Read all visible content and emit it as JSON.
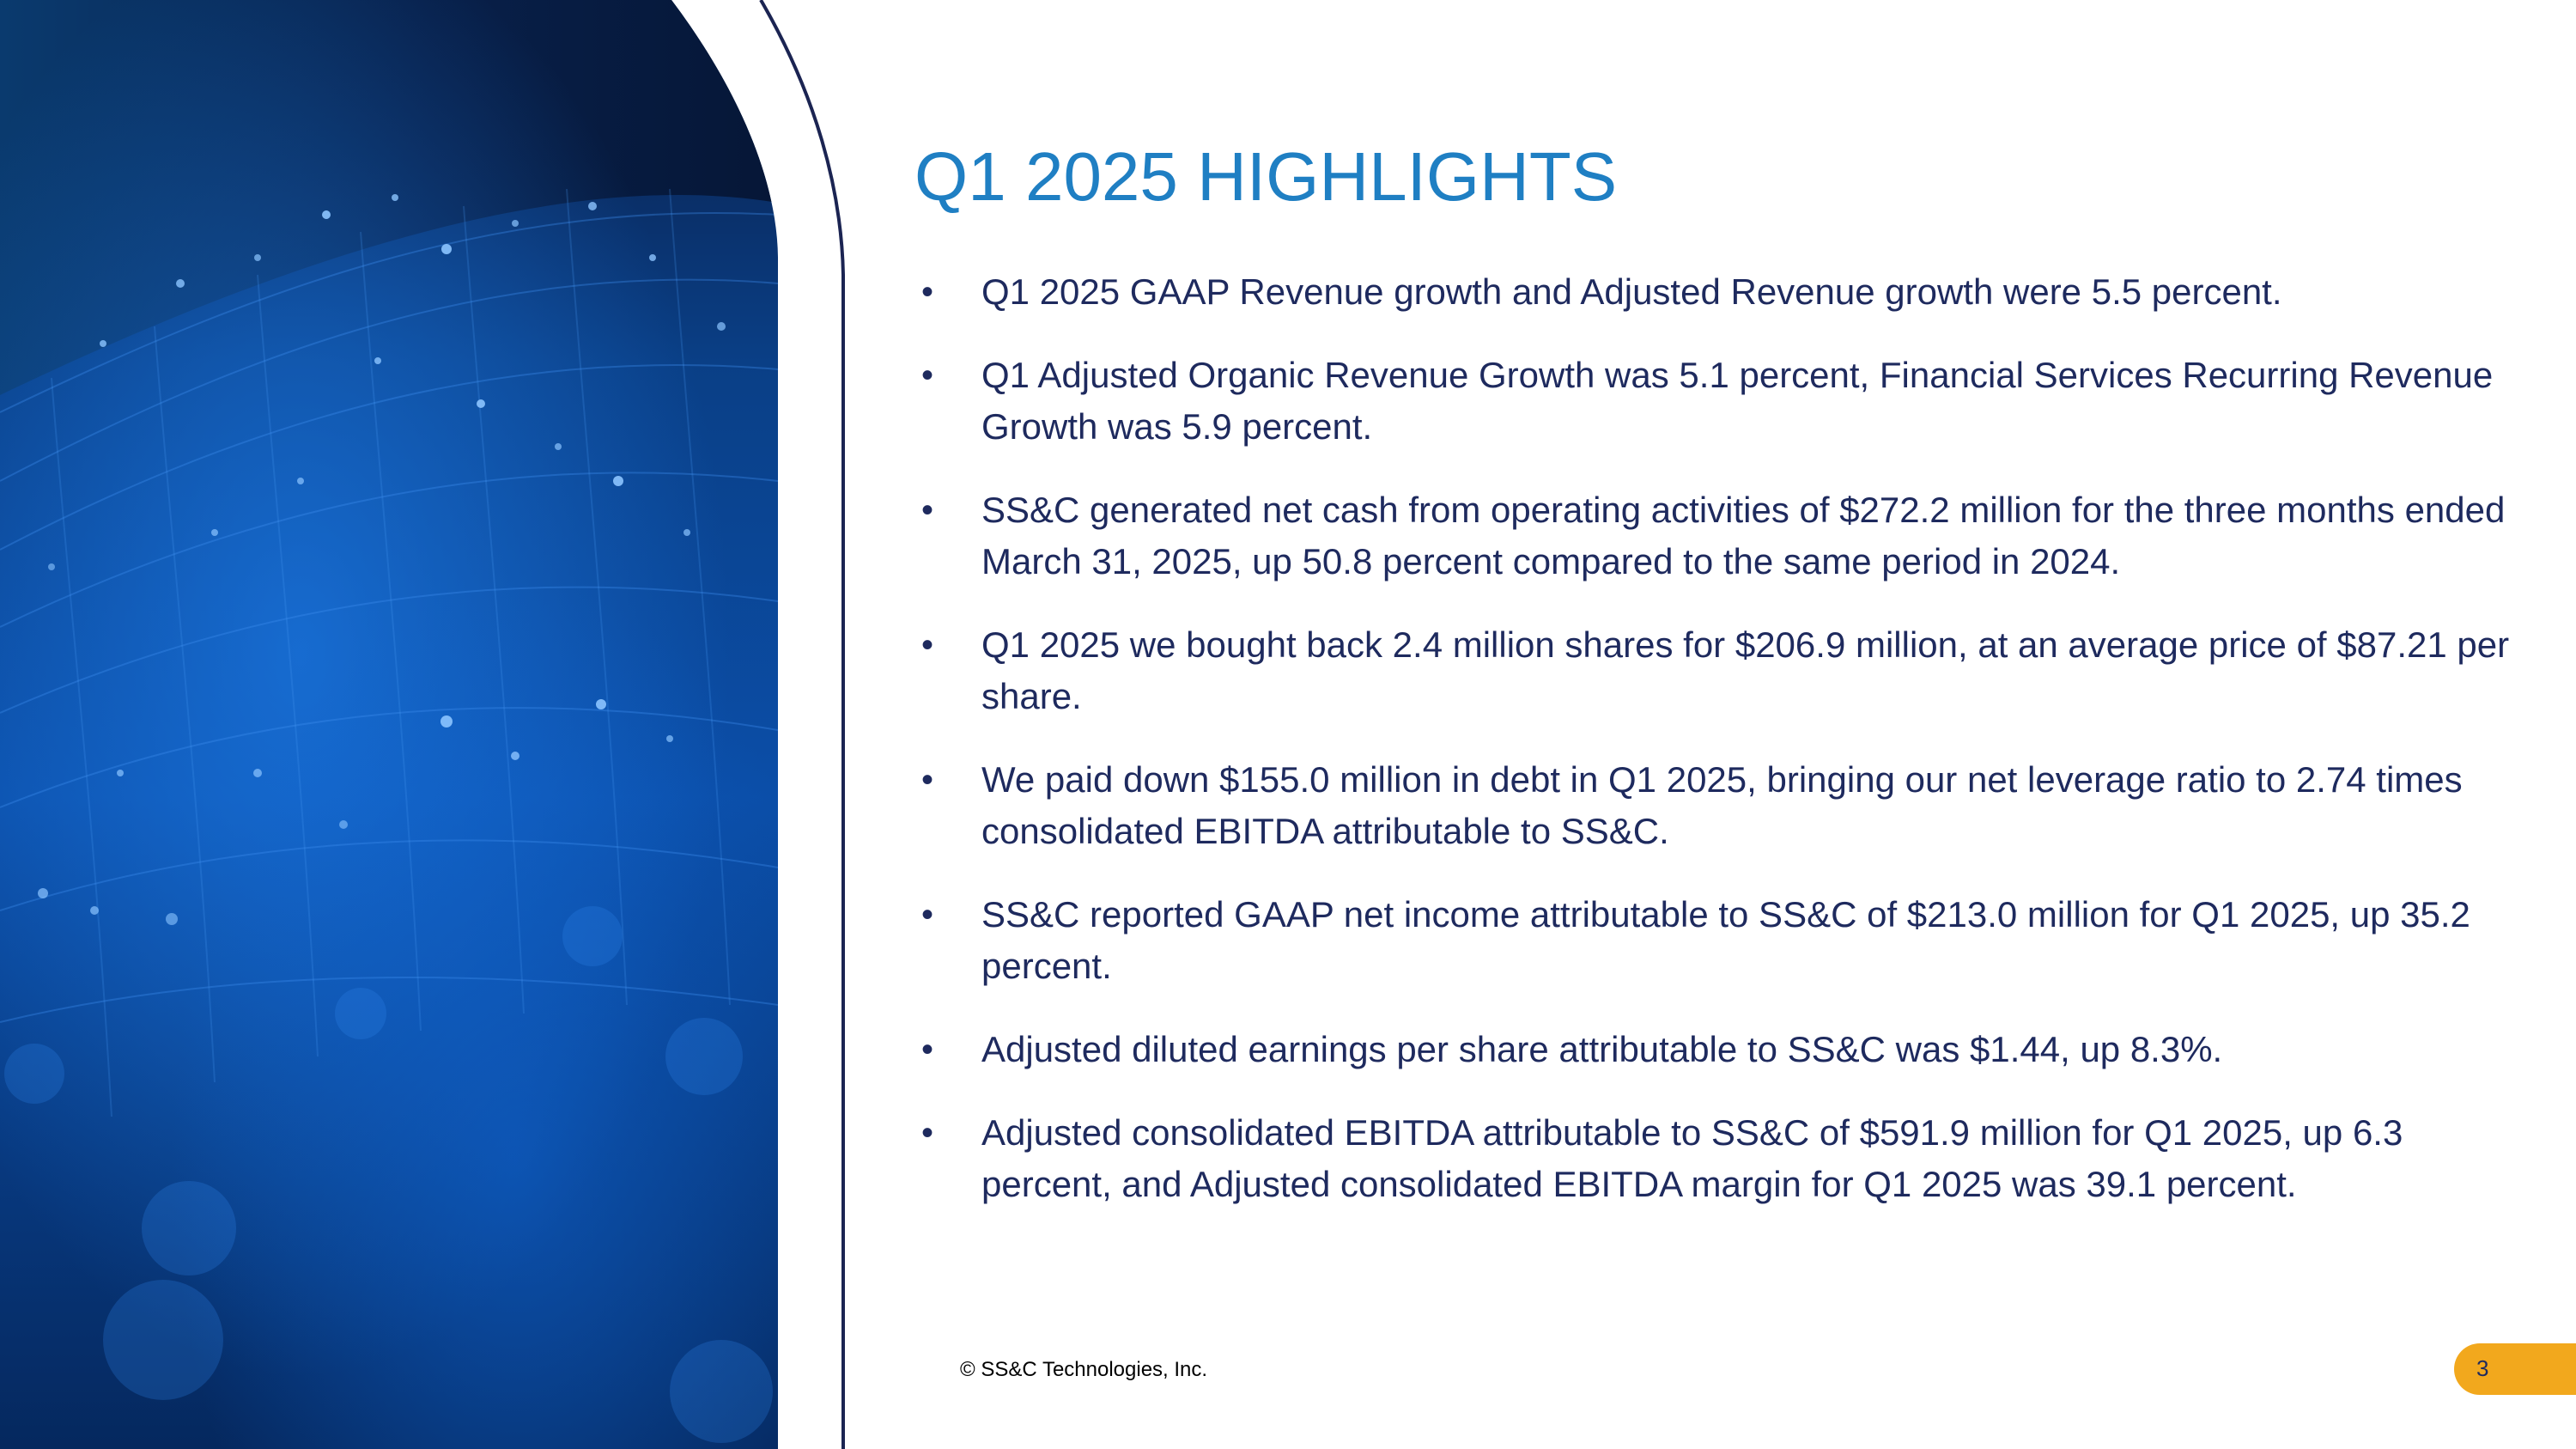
{
  "slide": {
    "title": "Q1 2025 HIGHLIGHTS",
    "bullets": [
      "Q1 2025 GAAP Revenue growth and Adjusted Revenue growth were 5.5 percent.",
      "Q1 Adjusted Organic Revenue Growth was 5.1 percent, Financial Services Recurring Revenue Growth was 5.9 percent.",
      "SS&C generated net cash from operating activities of $272.2 million for the three months ended March 31, 2025, up 50.8 percent compared to the same period in 2024.",
      "Q1 2025 we bought back 2.4 million shares for $206.9 million, at an average price of $87.21 per share.",
      "We paid down $155.0 million in debt in Q1 2025, bringing our net leverage ratio to 2.74 times consolidated EBITDA attributable to SS&C.",
      "SS&C reported GAAP net income attributable to SS&C of $213.0 million for Q1 2025, up 35.2 percent.",
      "Adjusted diluted earnings per share attributable to SS&C was $1.44, up 8.3%.",
      "Adjusted consolidated EBITDA attributable to SS&C of $591.9 million for Q1 2025, up 6.3 percent, and Adjusted consolidated EBITDA margin for Q1 2025 was 39.1 percent."
    ],
    "bullet_symbol": "•"
  },
  "footer": {
    "copyright": "© SS&C Technologies, Inc.",
    "page_number": "3"
  },
  "colors": {
    "title": "#1f7fc3",
    "body_text": "#1e2a5e",
    "accent_badge": "#f2a81d",
    "arc_line": "#1b2452",
    "hero_dark": "#061a3e",
    "hero_blue": "#0b5cbf"
  }
}
